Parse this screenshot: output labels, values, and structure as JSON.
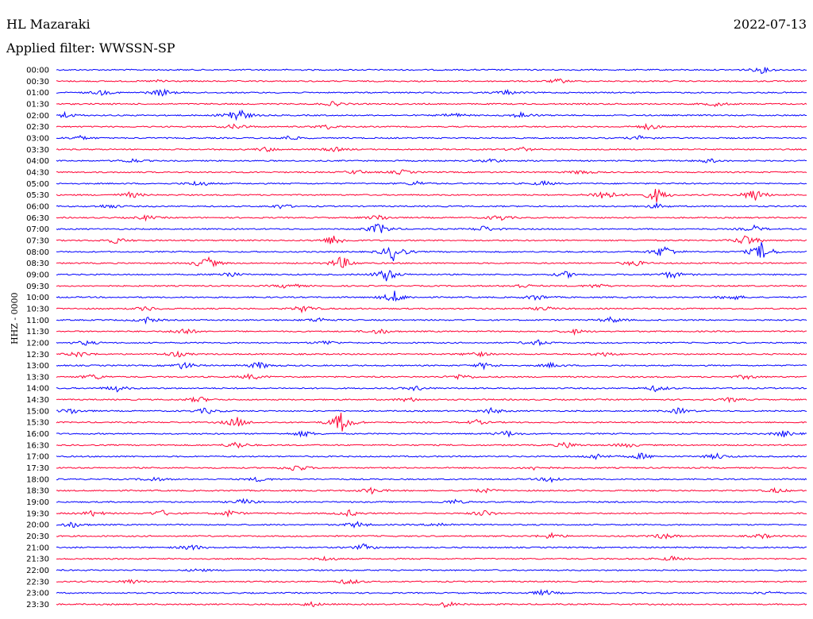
{
  "header": {
    "station": "HL Mazaraki",
    "filter": "Applied filter: WWSSN-SP",
    "date": "2022-07-13",
    "channel": "HHZ - 0000"
  },
  "colors": {
    "blue": "#0000ff",
    "red": "#ff0033"
  },
  "chart_data": {
    "type": "line",
    "title": "HL Mazaraki",
    "subtitle": "Applied filter: WWSSN-SP",
    "ylabel": "HHZ - 0000",
    "xlabel": "",
    "grid": false,
    "series": [
      {
        "name": "",
        "color": "blue"
      },
      {
        "name": "",
        "color": "red"
      }
    ],
    "rows": [
      {
        "time": "00:00",
        "color": "blue",
        "amp": 1.0,
        "events": [
          [
            0.94,
            4
          ]
        ]
      },
      {
        "time": "00:30",
        "color": "red",
        "amp": 1.0,
        "events": [
          [
            0.67,
            3
          ],
          [
            0.14,
            2
          ]
        ]
      },
      {
        "time": "01:00",
        "color": "blue",
        "amp": 1.0,
        "events": [
          [
            0.14,
            5
          ],
          [
            0.06,
            3
          ],
          [
            0.6,
            3
          ]
        ]
      },
      {
        "time": "01:30",
        "color": "red",
        "amp": 1.0,
        "events": [
          [
            0.37,
            3
          ],
          [
            0.88,
            3
          ]
        ]
      },
      {
        "time": "02:00",
        "color": "blue",
        "amp": 1.0,
        "events": [
          [
            0.01,
            4
          ],
          [
            0.24,
            12
          ],
          [
            0.62,
            4
          ],
          [
            0.53,
            3
          ]
        ]
      },
      {
        "time": "02:30",
        "color": "red",
        "amp": 1.0,
        "events": [
          [
            0.24,
            4
          ],
          [
            0.36,
            3
          ],
          [
            0.79,
            4
          ]
        ]
      },
      {
        "time": "03:00",
        "color": "blue",
        "amp": 1.0,
        "events": [
          [
            0.03,
            3
          ],
          [
            0.31,
            3
          ],
          [
            0.78,
            3
          ]
        ]
      },
      {
        "time": "03:30",
        "color": "red",
        "amp": 1.0,
        "events": [
          [
            0.28,
            3
          ],
          [
            0.37,
            3
          ],
          [
            0.62,
            3
          ]
        ]
      },
      {
        "time": "04:00",
        "color": "blue",
        "amp": 1.0,
        "events": [
          [
            0.1,
            3
          ],
          [
            0.58,
            3
          ],
          [
            0.87,
            3
          ]
        ]
      },
      {
        "time": "04:30",
        "color": "red",
        "amp": 1.0,
        "events": [
          [
            0.4,
            3
          ],
          [
            0.46,
            3
          ],
          [
            0.7,
            3
          ]
        ]
      },
      {
        "time": "05:00",
        "color": "blue",
        "amp": 1.0,
        "events": [
          [
            0.19,
            4
          ],
          [
            0.48,
            3
          ],
          [
            0.65,
            3
          ]
        ]
      },
      {
        "time": "05:30",
        "color": "red",
        "amp": 1.0,
        "events": [
          [
            0.1,
            4
          ],
          [
            0.73,
            8
          ],
          [
            0.8,
            9
          ],
          [
            0.93,
            9
          ]
        ]
      },
      {
        "time": "06:00",
        "color": "blue",
        "amp": 1.0,
        "events": [
          [
            0.07,
            3
          ],
          [
            0.3,
            3
          ],
          [
            0.8,
            3
          ]
        ]
      },
      {
        "time": "06:30",
        "color": "red",
        "amp": 1.0,
        "events": [
          [
            0.12,
            3
          ],
          [
            0.43,
            4
          ],
          [
            0.59,
            4
          ]
        ]
      },
      {
        "time": "07:00",
        "color": "blue",
        "amp": 1.0,
        "events": [
          [
            0.43,
            8
          ],
          [
            0.57,
            4
          ],
          [
            0.93,
            4
          ]
        ]
      },
      {
        "time": "07:30",
        "color": "red",
        "amp": 1.0,
        "events": [
          [
            0.08,
            4
          ],
          [
            0.37,
            7
          ],
          [
            0.92,
            8
          ]
        ]
      },
      {
        "time": "08:00",
        "color": "blue",
        "amp": 1.0,
        "events": [
          [
            0.45,
            12
          ],
          [
            0.81,
            9
          ],
          [
            0.94,
            12
          ]
        ]
      },
      {
        "time": "08:30",
        "color": "red",
        "amp": 1.0,
        "events": [
          [
            0.2,
            9
          ],
          [
            0.38,
            9
          ],
          [
            0.77,
            4
          ]
        ]
      },
      {
        "time": "09:00",
        "color": "blue",
        "amp": 1.0,
        "events": [
          [
            0.23,
            4
          ],
          [
            0.44,
            9
          ],
          [
            0.68,
            4
          ],
          [
            0.82,
            5
          ]
        ]
      },
      {
        "time": "09:30",
        "color": "red",
        "amp": 1.0,
        "events": [
          [
            0.31,
            4
          ],
          [
            0.62,
            3
          ],
          [
            0.72,
            3
          ]
        ]
      },
      {
        "time": "10:00",
        "color": "blue",
        "amp": 1.0,
        "events": [
          [
            0.45,
            8
          ],
          [
            0.64,
            4
          ],
          [
            0.9,
            4
          ]
        ]
      },
      {
        "time": "10:30",
        "color": "red",
        "amp": 1.0,
        "events": [
          [
            0.12,
            3
          ],
          [
            0.33,
            5
          ],
          [
            0.65,
            3
          ]
        ]
      },
      {
        "time": "11:00",
        "color": "blue",
        "amp": 1.0,
        "events": [
          [
            0.12,
            4
          ],
          [
            0.35,
            3
          ],
          [
            0.74,
            4
          ]
        ]
      },
      {
        "time": "11:30",
        "color": "red",
        "amp": 1.0,
        "events": [
          [
            0.17,
            5
          ],
          [
            0.43,
            4
          ],
          [
            0.69,
            3
          ]
        ]
      },
      {
        "time": "12:00",
        "color": "blue",
        "amp": 1.0,
        "events": [
          [
            0.04,
            3
          ],
          [
            0.36,
            3
          ],
          [
            0.64,
            4
          ]
        ]
      },
      {
        "time": "12:30",
        "color": "red",
        "amp": 1.0,
        "events": [
          [
            0.03,
            4
          ],
          [
            0.16,
            4
          ],
          [
            0.56,
            4
          ],
          [
            0.73,
            3
          ]
        ]
      },
      {
        "time": "13:00",
        "color": "blue",
        "amp": 1.0,
        "events": [
          [
            0.17,
            5
          ],
          [
            0.27,
            5
          ],
          [
            0.57,
            4
          ],
          [
            0.66,
            3
          ]
        ]
      },
      {
        "time": "13:30",
        "color": "red",
        "amp": 1.0,
        "events": [
          [
            0.05,
            4
          ],
          [
            0.26,
            4
          ],
          [
            0.54,
            4
          ],
          [
            0.92,
            3
          ]
        ]
      },
      {
        "time": "14:00",
        "color": "blue",
        "amp": 1.0,
        "events": [
          [
            0.08,
            4
          ],
          [
            0.48,
            3
          ],
          [
            0.8,
            4
          ]
        ]
      },
      {
        "time": "14:30",
        "color": "red",
        "amp": 1.0,
        "events": [
          [
            0.19,
            4
          ],
          [
            0.47,
            3
          ],
          [
            0.9,
            3
          ]
        ]
      },
      {
        "time": "15:00",
        "color": "blue",
        "amp": 1.0,
        "events": [
          [
            0.02,
            4
          ],
          [
            0.2,
            4
          ],
          [
            0.58,
            4
          ],
          [
            0.83,
            4
          ]
        ]
      },
      {
        "time": "15:30",
        "color": "red",
        "amp": 1.0,
        "events": [
          [
            0.24,
            7
          ],
          [
            0.38,
            14
          ],
          [
            0.56,
            3
          ]
        ]
      },
      {
        "time": "16:00",
        "color": "blue",
        "amp": 1.0,
        "events": [
          [
            0.33,
            4
          ],
          [
            0.6,
            4
          ],
          [
            0.97,
            4
          ]
        ]
      },
      {
        "time": "16:30",
        "color": "red",
        "amp": 1.0,
        "events": [
          [
            0.24,
            5
          ],
          [
            0.68,
            4
          ],
          [
            0.76,
            3
          ]
        ]
      },
      {
        "time": "17:00",
        "color": "blue",
        "amp": 1.0,
        "events": [
          [
            0.72,
            4
          ],
          [
            0.78,
            4
          ],
          [
            0.88,
            4
          ]
        ]
      },
      {
        "time": "17:30",
        "color": "red",
        "amp": 1.0,
        "events": [
          [
            0.32,
            5
          ],
          [
            0.64,
            3
          ]
        ]
      },
      {
        "time": "18:00",
        "color": "blue",
        "amp": 1.0,
        "events": [
          [
            0.13,
            3
          ],
          [
            0.27,
            3
          ],
          [
            0.66,
            4
          ]
        ]
      },
      {
        "time": "18:30",
        "color": "red",
        "amp": 1.0,
        "events": [
          [
            0.42,
            4
          ],
          [
            0.57,
            3
          ],
          [
            0.96,
            3
          ]
        ]
      },
      {
        "time": "19:00",
        "color": "blue",
        "amp": 1.0,
        "events": [
          [
            0.25,
            4
          ],
          [
            0.53,
            3
          ]
        ]
      },
      {
        "time": "19:30",
        "color": "red",
        "amp": 1.0,
        "events": [
          [
            0.05,
            4
          ],
          [
            0.14,
            4
          ],
          [
            0.23,
            4
          ],
          [
            0.39,
            4
          ],
          [
            0.57,
            4
          ]
        ]
      },
      {
        "time": "20:00",
        "color": "blue",
        "amp": 1.0,
        "events": [
          [
            0.02,
            4
          ],
          [
            0.4,
            4
          ],
          [
            0.51,
            3
          ]
        ]
      },
      {
        "time": "20:30",
        "color": "red",
        "amp": 1.0,
        "events": [
          [
            0.66,
            4
          ],
          [
            0.81,
            4
          ],
          [
            0.94,
            3
          ]
        ]
      },
      {
        "time": "21:00",
        "color": "blue",
        "amp": 1.0,
        "events": [
          [
            0.18,
            4
          ],
          [
            0.41,
            4
          ]
        ]
      },
      {
        "time": "21:30",
        "color": "red",
        "amp": 1.0,
        "events": [
          [
            0.36,
            3
          ],
          [
            0.82,
            3
          ]
        ]
      },
      {
        "time": "22:00",
        "color": "blue",
        "amp": 1.0,
        "events": [
          [
            0.19,
            2
          ]
        ]
      },
      {
        "time": "22:30",
        "color": "red",
        "amp": 1.0,
        "events": [
          [
            0.1,
            3
          ],
          [
            0.39,
            4
          ]
        ]
      },
      {
        "time": "23:00",
        "color": "blue",
        "amp": 1.0,
        "events": [
          [
            0.65,
            4
          ],
          [
            0.95,
            2
          ]
        ]
      },
      {
        "time": "23:30",
        "color": "red",
        "amp": 1.0,
        "events": [
          [
            0.34,
            3
          ],
          [
            0.52,
            4
          ]
        ]
      }
    ]
  }
}
